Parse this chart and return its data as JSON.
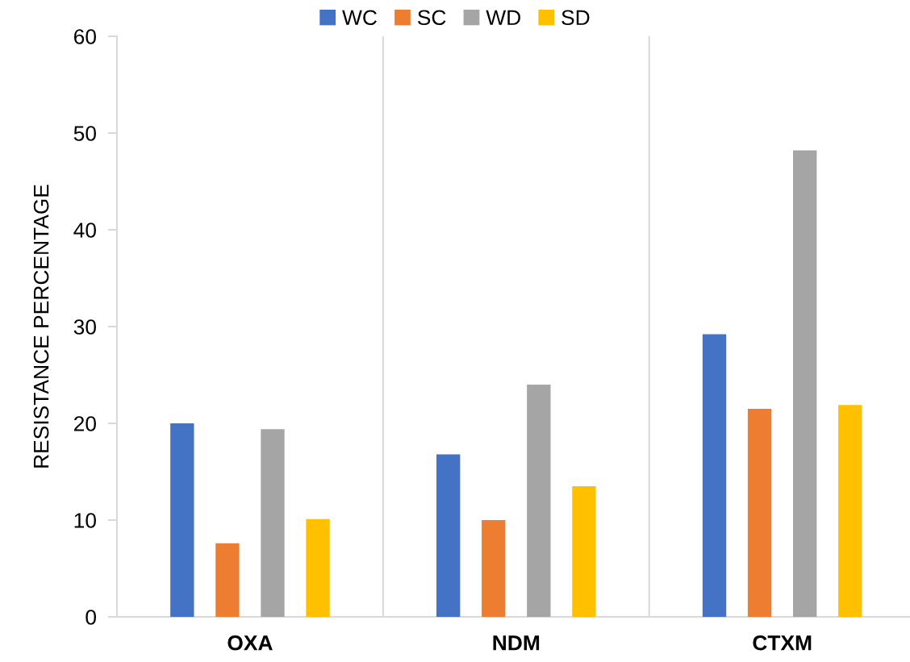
{
  "chart_data": {
    "type": "bar",
    "categories": [
      "OXA",
      "NDM",
      "CTXM"
    ],
    "series": [
      {
        "name": "WC",
        "color": "#4472c4",
        "values": [
          20.0,
          16.8,
          29.2
        ]
      },
      {
        "name": "SC",
        "color": "#ed7d31",
        "values": [
          7.6,
          10.0,
          21.5
        ]
      },
      {
        "name": "WD",
        "color": "#a5a5a5",
        "values": [
          19.4,
          24.0,
          48.2
        ]
      },
      {
        "name": "SD",
        "color": "#ffc000",
        "values": [
          10.1,
          13.5,
          21.9
        ]
      }
    ],
    "ylabel": "RESISTANCE PERCENTAGE",
    "ylim": [
      0,
      60
    ],
    "yticks": [
      0,
      10,
      20,
      30,
      40,
      50,
      60
    ],
    "grid": "x",
    "legend": "top"
  }
}
